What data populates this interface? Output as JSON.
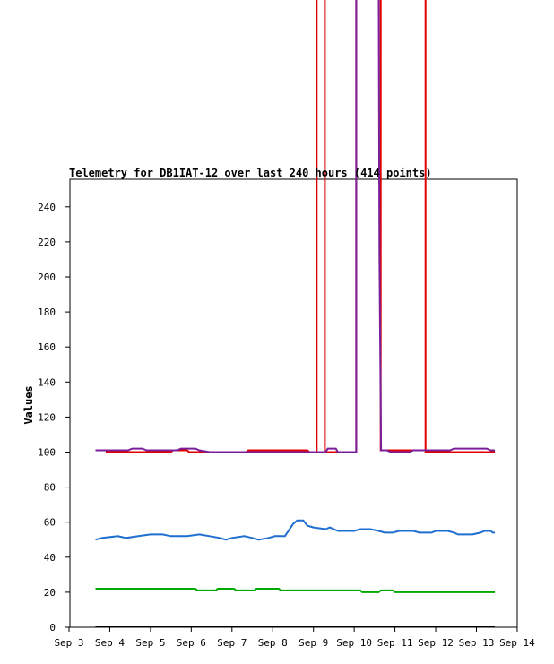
{
  "chart_data": {
    "type": "line",
    "title": "Telemetry for DB1IAT-12 over last 240 hours (414 points)",
    "xlabel": "",
    "ylabel": "Values",
    "xlim": [
      3.0,
      14.0
    ],
    "ylim": [
      0,
      255
    ],
    "grid": false,
    "x_tick_labels": [
      "Sep 3",
      "Sep 4",
      "Sep 5",
      "Sep 6",
      "Sep 7",
      "Sep 8",
      "Sep 9",
      "Sep 10",
      "Sep 11",
      "Sep 12",
      "Sep 13",
      "Sep 14"
    ],
    "y_tick_labels": [
      "0",
      "20",
      "40",
      "60",
      "80",
      "100",
      "120",
      "140",
      "160",
      "180",
      "200",
      "220",
      "240"
    ],
    "y_ticks": [
      0,
      20,
      40,
      60,
      80,
      100,
      120,
      140,
      160,
      180,
      200,
      220,
      240
    ],
    "series": [
      {
        "color": "#000000",
        "points": [
          [
            3.65,
            0
          ],
          [
            13.45,
            0
          ]
        ]
      },
      {
        "color": "#00aa00",
        "points": [
          [
            3.65,
            22
          ],
          [
            6.1,
            22
          ],
          [
            6.15,
            21
          ],
          [
            6.6,
            21
          ],
          [
            6.65,
            22
          ],
          [
            7.05,
            22
          ],
          [
            7.1,
            21
          ],
          [
            7.55,
            21
          ],
          [
            7.6,
            22
          ],
          [
            8.15,
            22
          ],
          [
            8.2,
            21
          ],
          [
            10.15,
            21
          ],
          [
            10.2,
            20
          ],
          [
            10.6,
            20
          ],
          [
            10.65,
            21
          ],
          [
            10.95,
            21
          ],
          [
            11.0,
            20
          ],
          [
            13.45,
            20
          ]
        ]
      },
      {
        "color": "#1f6fd0",
        "points": [
          [
            3.65,
            50
          ],
          [
            3.8,
            51
          ],
          [
            4.2,
            52
          ],
          [
            4.4,
            51
          ],
          [
            4.7,
            52
          ],
          [
            5.0,
            53
          ],
          [
            5.3,
            53
          ],
          [
            5.5,
            52
          ],
          [
            5.9,
            52
          ],
          [
            6.2,
            53
          ],
          [
            6.45,
            52
          ],
          [
            6.7,
            51
          ],
          [
            6.85,
            50
          ],
          [
            7.0,
            51
          ],
          [
            7.3,
            52
          ],
          [
            7.5,
            51
          ],
          [
            7.65,
            50
          ],
          [
            7.9,
            51
          ],
          [
            8.05,
            52
          ],
          [
            8.3,
            52
          ],
          [
            8.5,
            59
          ],
          [
            8.6,
            61
          ],
          [
            8.75,
            61
          ],
          [
            8.85,
            58
          ],
          [
            9.0,
            57
          ],
          [
            9.3,
            56
          ],
          [
            9.4,
            57
          ],
          [
            9.6,
            55
          ],
          [
            10.0,
            55
          ],
          [
            10.15,
            56
          ],
          [
            10.4,
            56
          ],
          [
            10.6,
            55
          ],
          [
            10.75,
            54
          ],
          [
            10.95,
            54
          ],
          [
            11.1,
            55
          ],
          [
            11.45,
            55
          ],
          [
            11.6,
            54
          ],
          [
            11.9,
            54
          ],
          [
            12.0,
            55
          ],
          [
            12.3,
            55
          ],
          [
            12.45,
            54
          ],
          [
            12.55,
            53
          ],
          [
            12.9,
            53
          ],
          [
            13.1,
            54
          ],
          [
            13.2,
            55
          ],
          [
            13.35,
            55
          ],
          [
            13.4,
            54
          ],
          [
            13.45,
            54
          ]
        ]
      },
      {
        "color": "#e00000",
        "points": [
          [
            3.9,
            100
          ],
          [
            5.5,
            100
          ],
          [
            5.55,
            101
          ],
          [
            5.9,
            101
          ],
          [
            5.95,
            100
          ],
          [
            7.35,
            100
          ],
          [
            7.4,
            101
          ],
          [
            8.85,
            101
          ],
          [
            8.9,
            100
          ],
          [
            9.08,
            100
          ],
          [
            9.08,
            380
          ],
          [
            9.28,
            380
          ],
          [
            9.28,
            100
          ],
          [
            10.05,
            100
          ],
          [
            10.05,
            380
          ],
          [
            10.65,
            380
          ],
          [
            10.65,
            101
          ],
          [
            11.75,
            101
          ],
          [
            11.75,
            380
          ],
          [
            11.75,
            100
          ],
          [
            13.45,
            100
          ]
        ]
      },
      {
        "color": "#7a1e9a",
        "points": [
          [
            3.65,
            101
          ],
          [
            4.45,
            101
          ],
          [
            4.55,
            102
          ],
          [
            4.8,
            102
          ],
          [
            4.9,
            101
          ],
          [
            5.65,
            101
          ],
          [
            5.75,
            102
          ],
          [
            6.1,
            102
          ],
          [
            6.2,
            101
          ],
          [
            6.45,
            100
          ],
          [
            9.3,
            100
          ],
          [
            9.35,
            102
          ],
          [
            9.55,
            102
          ],
          [
            9.6,
            100
          ],
          [
            10.05,
            100
          ],
          [
            10.05,
            380
          ],
          [
            10.6,
            380
          ],
          [
            10.62,
            213
          ],
          [
            10.66,
            101
          ],
          [
            10.8,
            101
          ],
          [
            10.9,
            100
          ],
          [
            11.35,
            100
          ],
          [
            11.45,
            101
          ],
          [
            12.35,
            101
          ],
          [
            12.45,
            102
          ],
          [
            13.25,
            102
          ],
          [
            13.35,
            101
          ],
          [
            13.45,
            101
          ]
        ]
      }
    ]
  }
}
